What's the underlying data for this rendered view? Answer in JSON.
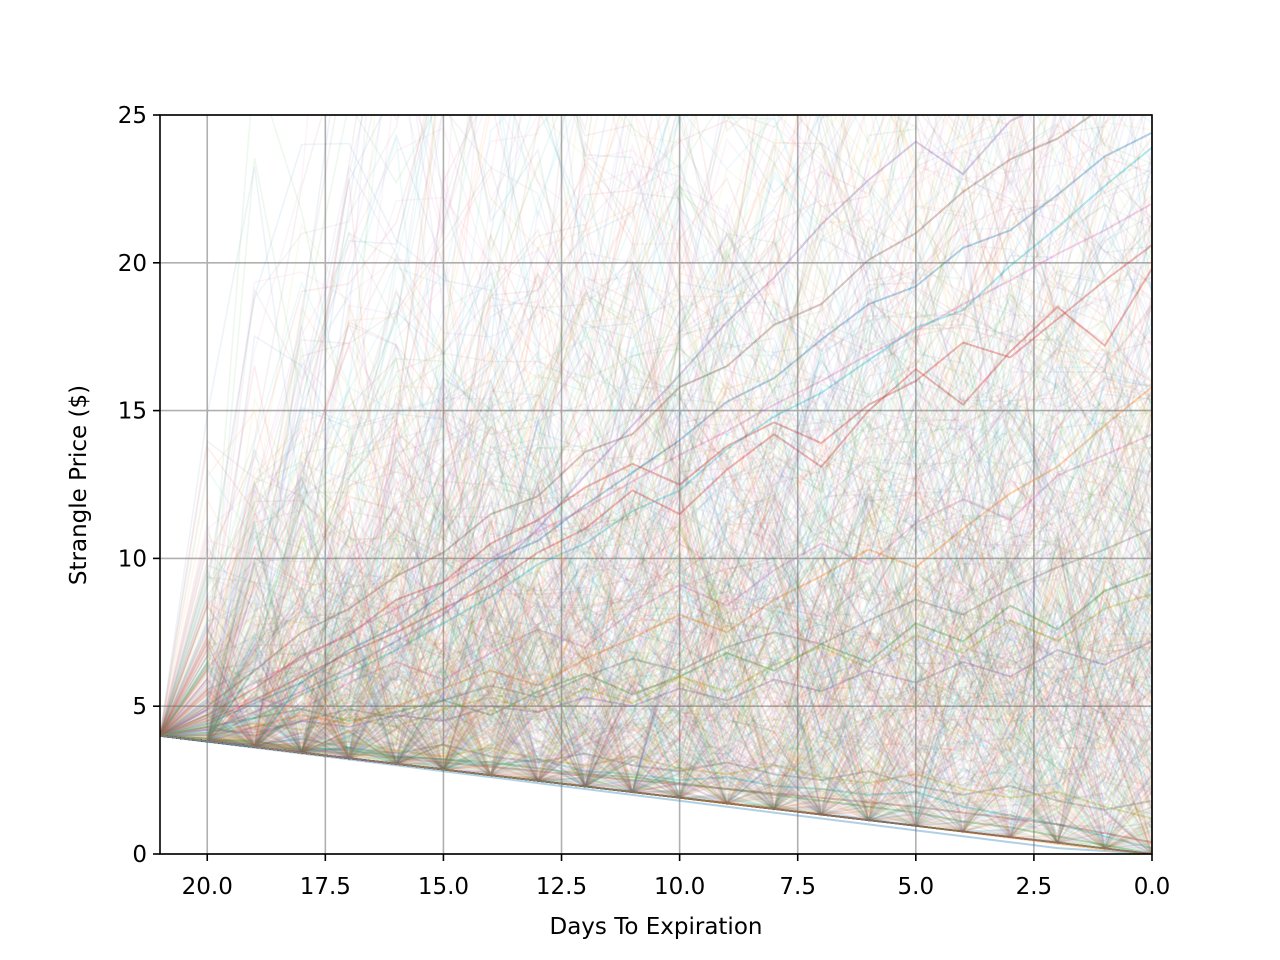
{
  "chart_data": {
    "type": "line",
    "title": "",
    "xlabel": "Days To Expiration",
    "ylabel": "Strangle Price ($)",
    "xlim": [
      21,
      0
    ],
    "ylim": [
      0,
      25
    ],
    "x_inverted": true,
    "grid": true,
    "legend": "none",
    "xticks": [
      20.0,
      17.5,
      15.0,
      12.5,
      10.0,
      7.5,
      5.0,
      2.5,
      0.0
    ],
    "xtick_labels": [
      "20.0",
      "17.5",
      "15.0",
      "12.5",
      "10.0",
      "7.5",
      "5.0",
      "2.5",
      "0.0"
    ],
    "yticks": [
      0,
      5,
      10,
      15,
      20,
      25
    ],
    "ytick_labels": [
      "0",
      "5",
      "10",
      "15",
      "20",
      "25"
    ],
    "x": [
      21,
      20,
      19,
      18,
      17,
      16,
      15,
      14,
      13,
      12,
      11,
      10,
      9,
      8,
      7,
      6,
      5,
      4,
      3,
      2,
      1,
      0
    ],
    "start_value": 4.0,
    "series_alpha": 0.08,
    "series_colors": [
      "#1f77b4",
      "#ff7f0e",
      "#2ca02c",
      "#d62728",
      "#9467bd",
      "#8c564b",
      "#e377c2",
      "#7f7f7f",
      "#bcbd22",
      "#17becf"
    ],
    "series": [
      {
        "values": [
          4.0,
          3.8,
          3.6,
          3.4,
          3.2,
          3.0,
          2.8,
          2.6,
          2.4,
          2.2,
          2.0,
          1.8,
          1.6,
          1.4,
          1.2,
          1.0,
          0.8,
          0.6,
          0.4,
          0.2,
          0.1,
          0.0
        ]
      },
      {
        "values": [
          4.0,
          3.82,
          3.63,
          3.45,
          3.24,
          3.05,
          2.86,
          2.67,
          2.48,
          2.3,
          2.1,
          1.9,
          1.7,
          1.55,
          1.35,
          1.15,
          0.95,
          0.75,
          0.55,
          0.35,
          0.15,
          0.0
        ]
      },
      {
        "values": [
          4.0,
          4.3,
          4.6,
          4.9,
          4.5,
          4.8,
          5.2,
          4.7,
          5.5,
          6.1,
          5.4,
          6.0,
          6.8,
          6.2,
          7.1,
          6.5,
          7.8,
          7.2,
          8.4,
          7.6,
          8.9,
          9.5
        ]
      },
      {
        "values": [
          4.0,
          4.5,
          5.2,
          6.0,
          6.8,
          7.5,
          8.3,
          9.1,
          10.2,
          11.0,
          12.3,
          11.5,
          13.0,
          14.2,
          13.1,
          15.0,
          16.4,
          15.2,
          17.0,
          18.5,
          17.2,
          19.8
        ]
      },
      {
        "values": [
          4.0,
          4.2,
          4.8,
          5.5,
          6.3,
          7.2,
          8.1,
          9.5,
          11.0,
          12.8,
          14.5,
          16.2,
          18.0,
          19.5,
          21.3,
          22.8,
          24.1,
          23.0,
          24.8,
          25.5,
          26.0,
          27.0
        ]
      },
      {
        "values": [
          4.0,
          5.0,
          6.2,
          7.5,
          8.3,
          9.4,
          10.2,
          11.5,
          12.1,
          13.6,
          14.2,
          15.8,
          16.5,
          17.9,
          18.6,
          20.1,
          21.0,
          22.4,
          23.5,
          24.2,
          25.3,
          26.1
        ]
      },
      {
        "values": [
          4.0,
          4.6,
          5.3,
          4.9,
          5.8,
          6.5,
          5.9,
          6.8,
          7.6,
          7.0,
          8.2,
          9.1,
          8.4,
          9.6,
          10.5,
          9.8,
          11.2,
          12.0,
          11.3,
          12.8,
          13.5,
          14.2
        ]
      },
      {
        "values": [
          4.0,
          3.9,
          3.7,
          3.9,
          3.6,
          3.4,
          3.7,
          3.3,
          3.1,
          3.4,
          3.0,
          2.8,
          3.1,
          2.7,
          2.5,
          2.8,
          2.3,
          2.0,
          2.3,
          1.8,
          1.5,
          1.8
        ]
      },
      {
        "values": [
          4.0,
          4.1,
          4.4,
          4.2,
          4.6,
          4.3,
          4.9,
          5.3,
          4.8,
          5.6,
          5.1,
          6.0,
          5.5,
          6.4,
          7.0,
          6.3,
          7.4,
          6.8,
          7.9,
          7.2,
          8.3,
          8.8
        ]
      },
      {
        "values": [
          4.0,
          3.8,
          3.7,
          3.5,
          3.6,
          3.3,
          3.2,
          3.0,
          3.2,
          2.8,
          2.7,
          2.5,
          2.6,
          2.3,
          2.2,
          2.0,
          2.1,
          1.6,
          1.3,
          1.0,
          0.6,
          0.2
        ]
      },
      {
        "values": [
          4.0,
          4.4,
          5.1,
          5.8,
          6.9,
          7.7,
          8.8,
          9.9,
          10.6,
          11.8,
          12.9,
          14.0,
          15.3,
          16.1,
          17.4,
          18.6,
          19.2,
          20.5,
          21.1,
          22.3,
          23.6,
          24.4
        ]
      },
      {
        "values": [
          4.0,
          4.0,
          4.3,
          4.7,
          4.4,
          5.0,
          5.6,
          6.2,
          5.7,
          6.6,
          7.3,
          8.1,
          7.5,
          8.6,
          9.4,
          10.3,
          9.7,
          11.0,
          12.2,
          13.1,
          14.5,
          15.8
        ]
      },
      {
        "values": [
          4.0,
          3.9,
          3.8,
          3.6,
          3.5,
          3.3,
          3.2,
          3.1,
          2.9,
          2.7,
          2.6,
          2.4,
          2.2,
          2.0,
          1.8,
          1.6,
          1.4,
          1.1,
          0.9,
          0.6,
          0.3,
          0.0
        ]
      },
      {
        "values": [
          4.0,
          4.7,
          5.6,
          6.7,
          7.4,
          8.6,
          9.2,
          10.5,
          11.3,
          12.4,
          13.2,
          12.5,
          13.8,
          14.6,
          13.9,
          15.2,
          16.0,
          17.3,
          16.8,
          18.1,
          19.4,
          20.6
        ]
      },
      {
        "values": [
          4.0,
          4.2,
          4.1,
          4.5,
          4.3,
          4.7,
          4.5,
          5.0,
          4.8,
          5.3,
          5.0,
          5.6,
          5.2,
          5.9,
          5.5,
          6.2,
          5.8,
          6.5,
          6.0,
          6.9,
          6.4,
          7.2
        ]
      },
      {
        "values": [
          4.0,
          3.85,
          3.7,
          3.55,
          3.4,
          3.25,
          3.1,
          2.95,
          2.8,
          2.65,
          2.5,
          2.35,
          2.2,
          2.05,
          1.9,
          1.75,
          1.6,
          1.4,
          1.2,
          1.0,
          0.7,
          0.4
        ]
      },
      {
        "values": [
          4.0,
          4.9,
          5.8,
          6.6,
          7.5,
          8.3,
          9.2,
          10.0,
          10.9,
          11.7,
          12.6,
          13.5,
          14.3,
          15.2,
          16.0,
          16.9,
          17.7,
          18.6,
          19.4,
          20.3,
          21.1,
          22.0
        ]
      },
      {
        "values": [
          4.0,
          4.3,
          4.0,
          4.5,
          4.9,
          4.6,
          5.2,
          5.7,
          5.3,
          6.0,
          6.6,
          6.2,
          7.0,
          7.5,
          7.1,
          7.9,
          8.6,
          8.1,
          9.0,
          9.7,
          10.3,
          11.0
        ]
      },
      {
        "values": [
          4.0,
          3.9,
          3.75,
          3.6,
          3.8,
          3.5,
          3.3,
          3.6,
          3.2,
          3.0,
          3.3,
          2.9,
          2.7,
          3.0,
          2.6,
          2.4,
          2.7,
          2.2,
          1.9,
          2.1,
          1.6,
          1.2
        ]
      },
      {
        "values": [
          4.0,
          4.1,
          4.6,
          5.4,
          6.1,
          6.9,
          7.8,
          8.7,
          9.8,
          10.5,
          11.6,
          12.3,
          13.7,
          14.8,
          15.6,
          16.7,
          17.8,
          18.4,
          19.9,
          21.2,
          22.6,
          23.9
        ]
      }
    ]
  }
}
